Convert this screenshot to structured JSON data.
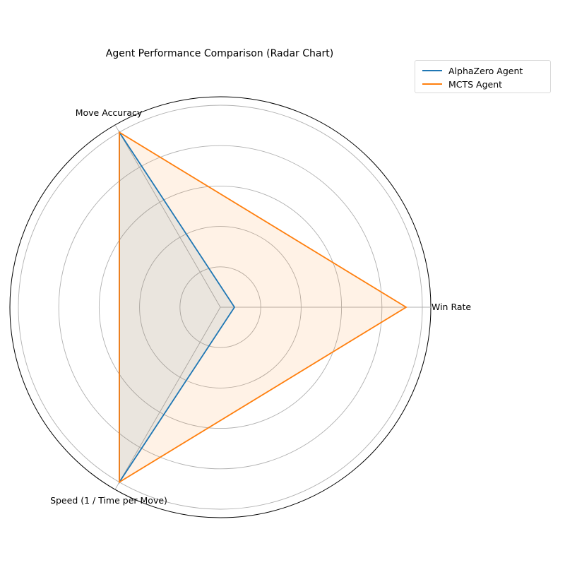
{
  "chart_data": {
    "type": "radar",
    "title": "Agent Performance Comparison (Radar Chart)",
    "axes": [
      "Win Rate",
      "Move Accuracy",
      "Speed (1 / Time per Move)"
    ],
    "rlim": [
      0,
      1.0
    ],
    "grid": true,
    "ring_levels": [
      0.2,
      0.4,
      0.6,
      0.8,
      1.0
    ],
    "legend_position": "upper-right (outside plot)",
    "series": [
      {
        "name": "AlphaZero Agent",
        "color": "#1f77b4",
        "fill_opacity": 0.1,
        "values": [
          0.07,
          1.0,
          1.0
        ]
      },
      {
        "name": "MCTS Agent",
        "color": "#ff7f0e",
        "fill_opacity": 0.1,
        "values": [
          0.92,
          1.0,
          1.0
        ]
      }
    ]
  }
}
